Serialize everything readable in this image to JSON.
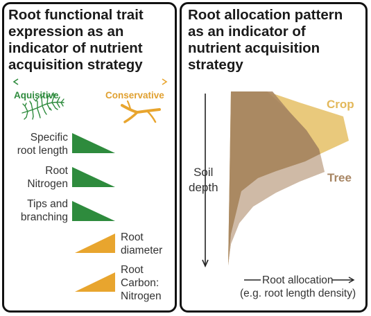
{
  "left_panel": {
    "title_lines": [
      "Root functional trait",
      "expression as an",
      "indicator of nutrient",
      "acquisition strategy"
    ],
    "axis_left_label": "Aquisitive",
    "axis_right_label": "Conservative",
    "traits": [
      {
        "label_lines": [
          "Specific",
          "root length"
        ],
        "strategy": "acquisitive"
      },
      {
        "label_lines": [
          "Root",
          "Nitrogen"
        ],
        "strategy": "acquisitive"
      },
      {
        "label_lines": [
          "Tips and",
          "branching"
        ],
        "strategy": "acquisitive"
      },
      {
        "label_lines": [
          "Root",
          "diameter"
        ],
        "strategy": "conservative"
      },
      {
        "label_lines": [
          "Root",
          "Carbon:",
          "Nitrogen"
        ],
        "strategy": "conservative"
      }
    ],
    "colors": {
      "acquisitive": "#2e8b3d",
      "conservative": "#e8a52e"
    }
  },
  "right_panel": {
    "title_lines": [
      "Root allocation pattern",
      "as an indicator of",
      "nutrient acquisition",
      "strategy"
    ],
    "y_axis_label_lines": [
      "Soil",
      "depth"
    ],
    "x_axis_label": "Root allocation",
    "x_axis_sublabel": "(e.g. root length density)",
    "series": [
      {
        "name": "Crop",
        "color": "#e9c97c"
      },
      {
        "name": "Tree",
        "color": "#b09272"
      }
    ]
  }
}
